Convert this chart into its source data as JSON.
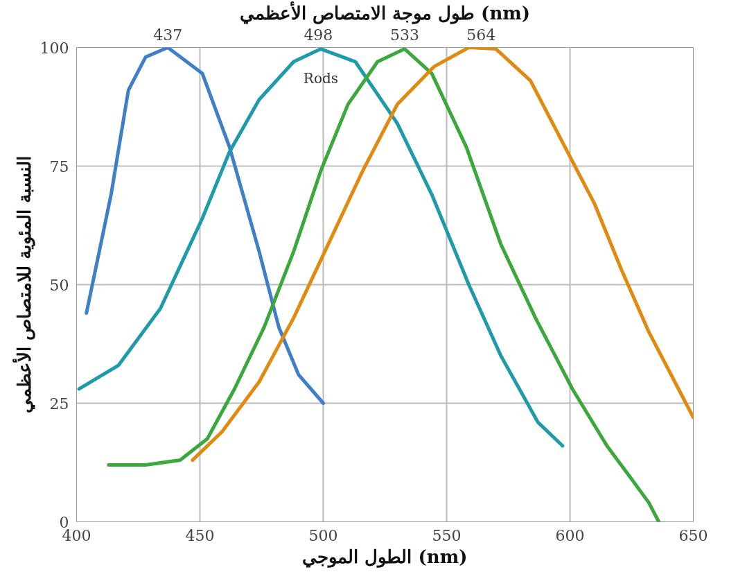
{
  "chart_data": {
    "type": "line",
    "x2label": "طول موجة الامتصاص الأعظمي (nm)",
    "xlabel": "الطول الموجي (nm)",
    "ylabel": "النسبة المئوية للامتصاص الأعظمي",
    "xlim": [
      400,
      650
    ],
    "xticks": [
      400,
      450,
      500,
      550,
      600,
      650
    ],
    "ylim": [
      0,
      100
    ],
    "yticks": [
      0,
      25,
      50,
      75,
      100
    ],
    "x2lim": [
      400,
      650
    ],
    "x2ticks": [
      437,
      498,
      533,
      564
    ],
    "grid": true,
    "line_style": "solid",
    "series": [
      {
        "color": "#3f7fc8",
        "x": [
          404,
          414,
          421,
          428,
          437,
          451,
          462,
          474,
          482,
          490,
          500
        ],
        "values": [
          44,
          69,
          91,
          98,
          100,
          94.5,
          79,
          57,
          41,
          31,
          25
        ]
      },
      {
        "name": "Rods",
        "color": "#1f9aa8",
        "x": [
          401,
          417,
          434,
          451,
          462,
          474,
          488,
          499,
          513,
          530,
          544,
          559,
          572,
          587,
          597
        ],
        "values": [
          28,
          33,
          45,
          64,
          78,
          89,
          97,
          99.7,
          97,
          84,
          69,
          50,
          35,
          21,
          16
        ]
      },
      {
        "color": "#3aa83a",
        "x": [
          413,
          428,
          442,
          453,
          464,
          476,
          488,
          499,
          510,
          522,
          533,
          544,
          558,
          572,
          586,
          601,
          615,
          625,
          632,
          636
        ],
        "values": [
          12,
          12,
          13,
          17.5,
          28,
          41,
          57,
          74,
          88,
          97,
          99.7,
          94.5,
          79,
          58.5,
          43,
          28,
          16,
          9,
          4,
          0
        ]
      },
      {
        "color": "#e08a10",
        "x": [
          447,
          459,
          474,
          488,
          502,
          516,
          530,
          545,
          559,
          570,
          584,
          598,
          610,
          621,
          632,
          644,
          650
        ],
        "values": [
          13,
          19,
          29.5,
          43,
          58.5,
          74,
          88,
          96,
          100,
          99.7,
          93,
          79,
          67,
          53,
          40,
          28,
          22
        ]
      }
    ]
  }
}
